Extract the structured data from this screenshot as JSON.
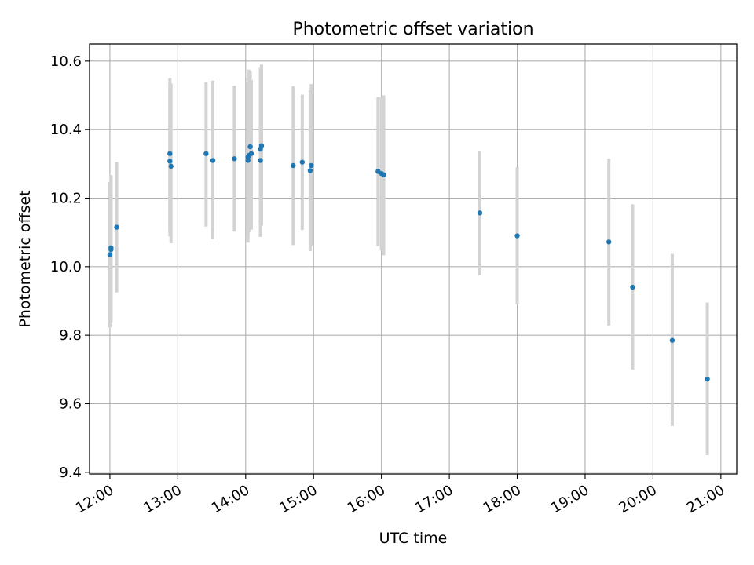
{
  "chart_data": {
    "type": "scatter",
    "title": "Photometric offset variation",
    "xlabel": "UTC time",
    "ylabel": "Photometric offset",
    "x_ticks": [
      "12:00",
      "13:00",
      "14:00",
      "15:00",
      "16:00",
      "17:00",
      "18:00",
      "19:00",
      "20:00",
      "21:00"
    ],
    "y_ticks": [
      "9.4",
      "9.6",
      "9.8",
      "10.0",
      "10.2",
      "10.4",
      "10.6"
    ],
    "xlim": [
      "11:42",
      "21:14"
    ],
    "ylim": [
      9.395,
      10.65
    ],
    "grid": true,
    "colors": {
      "points": "#1f77b4",
      "errorbars": "#d3d3d3",
      "grid": "#b0b0b0"
    },
    "points": [
      {
        "x": "12:00",
        "y": 10.035,
        "ylow": 9.823,
        "yhigh": 10.247
      },
      {
        "x": "12:01",
        "y": 10.05,
        "ylow": 9.838,
        "yhigh": 10.262
      },
      {
        "x": "12:01",
        "y": 10.055,
        "ylow": 9.843,
        "yhigh": 10.267
      },
      {
        "x": "12:06",
        "y": 10.115,
        "ylow": 9.925,
        "yhigh": 10.305
      },
      {
        "x": "12:53",
        "y": 10.33,
        "ylow": 10.11,
        "yhigh": 10.55
      },
      {
        "x": "12:53",
        "y": 10.308,
        "ylow": 10.088,
        "yhigh": 10.528
      },
      {
        "x": "12:54",
        "y": 10.293,
        "ylow": 10.068,
        "yhigh": 10.535
      },
      {
        "x": "13:25",
        "y": 10.33,
        "ylow": 10.117,
        "yhigh": 10.538
      },
      {
        "x": "13:31",
        "y": 10.31,
        "ylow": 10.08,
        "yhigh": 10.543
      },
      {
        "x": "13:50",
        "y": 10.315,
        "ylow": 10.102,
        "yhigh": 10.528
      },
      {
        "x": "14:02",
        "y": 10.31,
        "ylow": 10.07,
        "yhigh": 10.54
      },
      {
        "x": "14:02",
        "y": 10.32,
        "ylow": 10.09,
        "yhigh": 10.55
      },
      {
        "x": "14:03",
        "y": 10.325,
        "ylow": 10.1,
        "yhigh": 10.575
      },
      {
        "x": "14:04",
        "y": 10.35,
        "ylow": 10.13,
        "yhigh": 10.57
      },
      {
        "x": "14:05",
        "y": 10.33,
        "ylow": 10.108,
        "yhigh": 10.545
      },
      {
        "x": "14:13",
        "y": 10.31,
        "ylow": 10.087,
        "yhigh": 10.535
      },
      {
        "x": "14:13",
        "y": 10.343,
        "ylow": 10.11,
        "yhigh": 10.58
      },
      {
        "x": "14:14",
        "y": 10.353,
        "ylow": 10.12,
        "yhigh": 10.59
      },
      {
        "x": "14:42",
        "y": 10.295,
        "ylow": 10.063,
        "yhigh": 10.527
      },
      {
        "x": "14:50",
        "y": 10.305,
        "ylow": 10.107,
        "yhigh": 10.502
      },
      {
        "x": "14:57",
        "y": 10.28,
        "ylow": 10.045,
        "yhigh": 10.515
      },
      {
        "x": "14:58",
        "y": 10.295,
        "ylow": 10.06,
        "yhigh": 10.533
      },
      {
        "x": "15:57",
        "y": 10.278,
        "ylow": 10.06,
        "yhigh": 10.495
      },
      {
        "x": "16:00",
        "y": 10.272,
        "ylow": 10.048,
        "yhigh": 10.495
      },
      {
        "x": "16:02",
        "y": 10.268,
        "ylow": 10.033,
        "yhigh": 10.5
      },
      {
        "x": "17:27",
        "y": 10.157,
        "ylow": 9.975,
        "yhigh": 10.338
      },
      {
        "x": "18:00",
        "y": 10.09,
        "ylow": 9.89,
        "yhigh": 10.29
      },
      {
        "x": "19:21",
        "y": 10.072,
        "ylow": 9.828,
        "yhigh": 10.315
      },
      {
        "x": "19:42",
        "y": 9.94,
        "ylow": 9.7,
        "yhigh": 10.182
      },
      {
        "x": "20:17",
        "y": 9.785,
        "ylow": 9.535,
        "yhigh": 10.037
      },
      {
        "x": "20:48",
        "y": 9.672,
        "ylow": 9.45,
        "yhigh": 9.895
      }
    ]
  }
}
